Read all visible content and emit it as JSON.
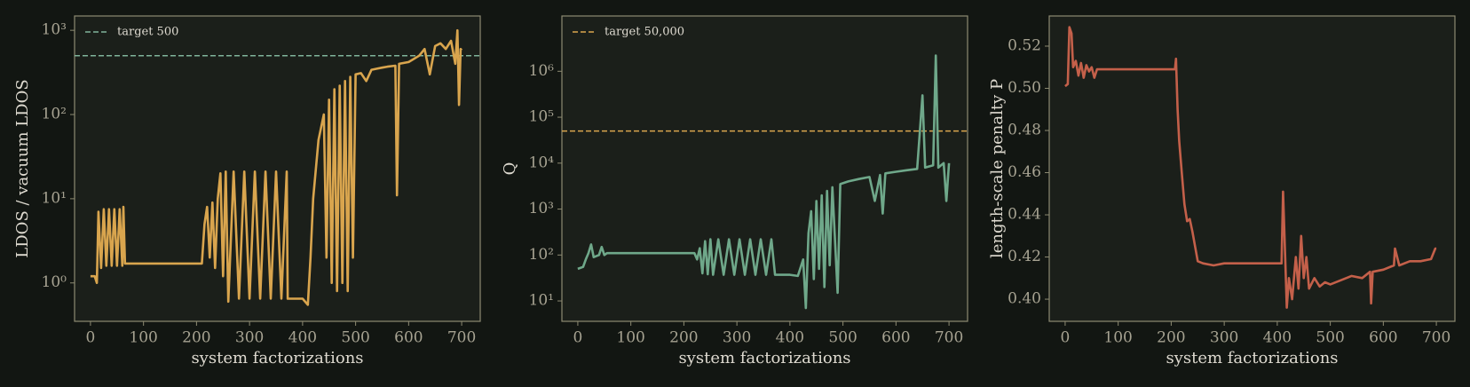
{
  "chart_data": [
    {
      "type": "line",
      "ylog": true,
      "ylabel": "LDOS / vacuum LDOS",
      "xlabel": "system factorizations",
      "xlim": [
        -30,
        735
      ],
      "ylim": [
        0.35,
        1480
      ],
      "xticks": [
        0,
        100,
        200,
        300,
        400,
        500,
        600,
        700
      ],
      "yticks": [
        {
          "value": 1,
          "label": "10⁰"
        },
        {
          "value": 10,
          "label": "10¹"
        },
        {
          "value": 100,
          "label": "10²"
        },
        {
          "value": 1000,
          "label": "10³"
        }
      ],
      "reference": {
        "value": 500,
        "label": "target 500",
        "color": "#7fb39a"
      },
      "color": "#d9a54e",
      "x": [
        0,
        8,
        12,
        15,
        20,
        25,
        30,
        35,
        40,
        45,
        50,
        55,
        60,
        62,
        65,
        100,
        150,
        200,
        210,
        215,
        220,
        225,
        230,
        235,
        240,
        245,
        250,
        255,
        260,
        270,
        280,
        290,
        300,
        310,
        320,
        330,
        340,
        350,
        360,
        370,
        372,
        400,
        410,
        415,
        420,
        430,
        440,
        445,
        450,
        455,
        460,
        465,
        470,
        475,
        480,
        485,
        490,
        495,
        500,
        510,
        520,
        530,
        540,
        550,
        560,
        575,
        578,
        582,
        600,
        620,
        630,
        640,
        650,
        660,
        670,
        680,
        688,
        692,
        695,
        698,
        700
      ],
      "values": [
        1.2,
        1.2,
        1.0,
        7,
        1.5,
        7.5,
        1.6,
        7.5,
        1.6,
        7.5,
        1.6,
        7.5,
        1.6,
        8,
        1.7,
        1.7,
        1.7,
        1.7,
        1.7,
        5,
        8,
        2,
        9,
        1.5,
        10,
        20,
        1.2,
        21,
        0.6,
        21,
        0.65,
        21,
        0.65,
        21,
        0.65,
        21,
        0.65,
        21,
        0.65,
        21,
        0.65,
        0.65,
        0.55,
        2,
        10,
        50,
        100,
        2,
        150,
        1,
        200,
        0.8,
        220,
        1,
        250,
        0.8,
        280,
        2,
        300,
        310,
        250,
        340,
        350,
        360,
        370,
        380,
        11,
        400,
        420,
        500,
        600,
        300,
        650,
        700,
        600,
        750,
        400,
        1000,
        130,
        600,
        580
      ]
    },
    {
      "type": "line",
      "ylog": true,
      "ylabel": "Q",
      "xlabel": "system factorizations",
      "xlim": [
        -30,
        735
      ],
      "ylim": [
        3.6,
        16000000
      ],
      "xticks": [
        0,
        100,
        200,
        300,
        400,
        500,
        600,
        700
      ],
      "yticks": [
        {
          "value": 10,
          "label": "10¹"
        },
        {
          "value": 100,
          "label": "10²"
        },
        {
          "value": 1000,
          "label": "10³"
        },
        {
          "value": 10000,
          "label": "10⁴"
        },
        {
          "value": 100000,
          "label": "10⁵"
        },
        {
          "value": 1000000,
          "label": "10⁶"
        }
      ],
      "reference": {
        "value": 50000,
        "label": "target 50,000",
        "color": "#d9a54e"
      },
      "color": "#6fa88a",
      "x": [
        0,
        10,
        15,
        20,
        25,
        30,
        40,
        45,
        50,
        55,
        100,
        150,
        200,
        220,
        225,
        230,
        235,
        240,
        245,
        250,
        255,
        265,
        275,
        285,
        295,
        305,
        315,
        325,
        335,
        345,
        355,
        365,
        372,
        400,
        415,
        425,
        430,
        435,
        440,
        445,
        450,
        455,
        460,
        465,
        470,
        475,
        480,
        490,
        495,
        510,
        530,
        550,
        560,
        570,
        575,
        580,
        600,
        620,
        640,
        650,
        655,
        670,
        675,
        680,
        690,
        695,
        700
      ],
      "values": [
        50,
        55,
        80,
        110,
        170,
        90,
        100,
        150,
        100,
        110,
        110,
        110,
        110,
        110,
        80,
        140,
        40,
        200,
        38,
        220,
        37,
        220,
        37,
        220,
        37,
        220,
        37,
        220,
        37,
        220,
        37,
        220,
        37,
        37,
        35,
        80,
        7,
        300,
        900,
        30,
        1500,
        50,
        2000,
        20,
        2500,
        60,
        3000,
        15,
        3500,
        4000,
        4500,
        5000,
        1500,
        5500,
        800,
        6000,
        6500,
        7000,
        7500,
        300000,
        8000,
        9000,
        2200000,
        8000,
        10000,
        1500,
        10000
      ]
    },
    {
      "type": "line",
      "ylog": false,
      "ylabel": "length-scale penalty P",
      "xlabel": "system factorizations",
      "xlim": [
        -30,
        735
      ],
      "ylim": [
        0.3895,
        0.5343
      ],
      "xticks": [
        0,
        100,
        200,
        300,
        400,
        500,
        600,
        700
      ],
      "yticks": [
        {
          "value": 0.4,
          "label": "0.40"
        },
        0.42,
        0.44,
        0.46,
        0.48,
        {
          "value": 0.5,
          "label": "0.50"
        },
        0.52
      ],
      "color": "#c4604a",
      "x": [
        0,
        5,
        8,
        12,
        15,
        20,
        25,
        30,
        35,
        40,
        45,
        50,
        55,
        60,
        100,
        150,
        200,
        207,
        209,
        212,
        215,
        220,
        225,
        230,
        235,
        240,
        245,
        250,
        260,
        280,
        300,
        350,
        400,
        408,
        411,
        415,
        418,
        422,
        428,
        435,
        440,
        445,
        450,
        455,
        460,
        470,
        480,
        490,
        500,
        520,
        540,
        560,
        575,
        577,
        580,
        600,
        620,
        622,
        630,
        650,
        670,
        690,
        698,
        700
      ],
      "values": [
        0.501,
        0.502,
        0.529,
        0.526,
        0.51,
        0.513,
        0.506,
        0.512,
        0.505,
        0.511,
        0.508,
        0.51,
        0.505,
        0.509,
        0.509,
        0.509,
        0.509,
        0.509,
        0.514,
        0.49,
        0.475,
        0.46,
        0.445,
        0.437,
        0.438,
        0.432,
        0.425,
        0.418,
        0.417,
        0.416,
        0.417,
        0.417,
        0.417,
        0.417,
        0.451,
        0.42,
        0.396,
        0.41,
        0.4,
        0.42,
        0.405,
        0.43,
        0.41,
        0.42,
        0.405,
        0.41,
        0.406,
        0.408,
        0.407,
        0.409,
        0.411,
        0.41,
        0.413,
        0.398,
        0.413,
        0.414,
        0.416,
        0.424,
        0.416,
        0.418,
        0.418,
        0.419,
        0.424,
        0.424
      ]
    }
  ]
}
